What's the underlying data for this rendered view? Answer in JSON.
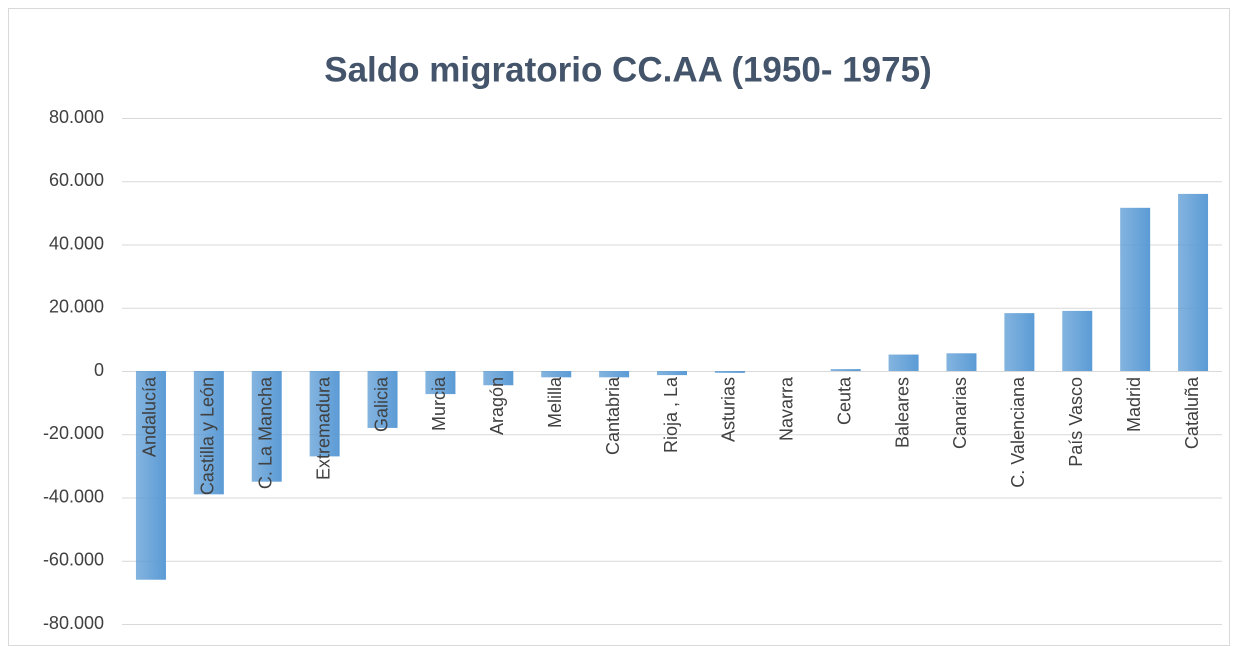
{
  "chart_data": {
    "type": "bar",
    "title": "Saldo migratorio CC.AA (1950- 1975)",
    "categories": [
      "Andalucía",
      "Castilla y León",
      "C. La Mancha",
      "Extremadura",
      "Galicia",
      "Murcia",
      "Aragón",
      "Melilla",
      "Cantabria",
      "Rioja , La",
      "Asturias",
      "Navarra",
      "Ceuta",
      "Baleares",
      "Canarias",
      "C. Valenciana",
      "País Vasco",
      "Madrid",
      "Cataluña"
    ],
    "values": [
      -66000,
      -39000,
      -35000,
      -27000,
      -18000,
      -7300,
      -4500,
      -2000,
      -2000,
      -1300,
      -600,
      0,
      600,
      5200,
      5600,
      18300,
      19000,
      51600,
      56000
    ],
    "color": "#5b9bd5",
    "ylim": [
      -80000,
      80000
    ],
    "yticks": [
      {
        "value": -80000,
        "label": "-80.000"
      },
      {
        "value": -60000,
        "label": "-60.000"
      },
      {
        "value": -40000,
        "label": "-40.000"
      },
      {
        "value": -20000,
        "label": "-20.000"
      },
      0,
      {
        "value": 20000,
        "label": "20.000"
      },
      {
        "value": 40000,
        "label": "40.000"
      },
      {
        "value": 60000,
        "label": "60.000"
      },
      {
        "value": 80000,
        "label": "80.000"
      }
    ],
    "grid": true
  }
}
